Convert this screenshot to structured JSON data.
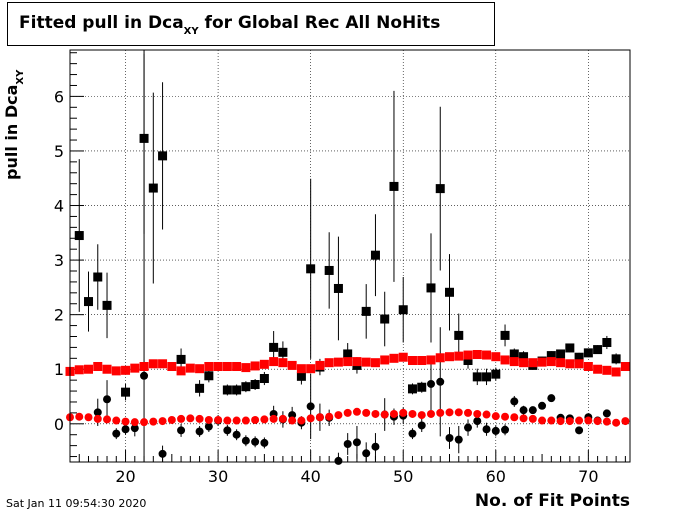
{
  "title": {
    "main": "Fitted pull in Dca",
    "sub": "XY",
    "rest": " for Global Rec All NoHits"
  },
  "ylabel": {
    "main": "pull in Dca",
    "sub": "XY"
  },
  "xlabel": "No. of Fit Points",
  "timestamp": "Sat Jan 11 09:54:30 2020",
  "chart_data": {
    "type": "scatter",
    "xlim": [
      14,
      74.5
    ],
    "ylim": [
      -0.7,
      6.85
    ],
    "xticks": [
      20,
      30,
      40,
      50,
      60,
      70
    ],
    "yticks": [
      0,
      1,
      2,
      3,
      4,
      5,
      6
    ],
    "grid": true,
    "series": [
      {
        "color": "#000000",
        "marker": "square",
        "points": [
          [
            15,
            3.45,
            1.4
          ],
          [
            16,
            2.24,
            0.55
          ],
          [
            17,
            2.69,
            0.6
          ],
          [
            18,
            2.17,
            0.6
          ],
          [
            20,
            0.58,
            0.15
          ],
          [
            22,
            5.23,
            1.75
          ],
          [
            23,
            4.32,
            1.75
          ],
          [
            24,
            4.91,
            1.35
          ],
          [
            26,
            1.18,
            0.2
          ],
          [
            28,
            0.65,
            0.15
          ],
          [
            29,
            0.88,
            0.12
          ],
          [
            31,
            0.62,
            0.1
          ],
          [
            32,
            0.62,
            0.1
          ],
          [
            33,
            0.68,
            0.1
          ],
          [
            34,
            0.72,
            0.1
          ],
          [
            35,
            0.83,
            0.12
          ],
          [
            36,
            1.4,
            0.3
          ],
          [
            37,
            1.31,
            0.2
          ],
          [
            39,
            0.87,
            0.15
          ],
          [
            40,
            2.84,
            1.65
          ],
          [
            41,
            1.04,
            0.15
          ],
          [
            42,
            2.81,
            0.7
          ],
          [
            43,
            2.48,
            0.95
          ],
          [
            44,
            1.28,
            0.2
          ],
          [
            45,
            1.07,
            0.15
          ],
          [
            46,
            2.06,
            0.5
          ],
          [
            47,
            3.09,
            0.75
          ],
          [
            48,
            1.92,
            0.5
          ],
          [
            49,
            4.35,
            1.75
          ],
          [
            50,
            2.09,
            0.6
          ],
          [
            51,
            0.64,
            0.1
          ],
          [
            52,
            0.67,
            0.1
          ],
          [
            53,
            2.49,
            1.0
          ],
          [
            54,
            4.31,
            1.5
          ],
          [
            55,
            2.41,
            0.7
          ],
          [
            56,
            1.62,
            0.4
          ],
          [
            57,
            1.16,
            0.15
          ],
          [
            58,
            0.86,
            0.15
          ],
          [
            59,
            0.86,
            0.15
          ],
          [
            60,
            0.91,
            0.12
          ],
          [
            61,
            1.62,
            0.2
          ],
          [
            62,
            1.28,
            0.1
          ],
          [
            63,
            1.23,
            0.1
          ],
          [
            64,
            1.07,
            0.08
          ],
          [
            65,
            1.15,
            0.08
          ],
          [
            66,
            1.25,
            0.08
          ],
          [
            67,
            1.28,
            0.08
          ],
          [
            68,
            1.39,
            0.08
          ],
          [
            69,
            1.22,
            0.08
          ],
          [
            70,
            1.3,
            0.08
          ],
          [
            71,
            1.36,
            0.08
          ],
          [
            72,
            1.49,
            0.12
          ],
          [
            73,
            1.19,
            0.1
          ]
        ]
      },
      {
        "color": "#000000",
        "marker": "circle",
        "points": [
          [
            17,
            0.21,
            0.25
          ],
          [
            18,
            0.45,
            0.35
          ],
          [
            19,
            -0.18,
            0.1
          ],
          [
            20,
            -0.1,
            0.1
          ],
          [
            21,
            -0.08,
            0.15
          ],
          [
            22,
            0.88,
            5.9
          ],
          [
            24,
            -0.55,
            0.15
          ],
          [
            26,
            -0.12,
            0.12
          ],
          [
            28,
            -0.14,
            0.1
          ],
          [
            29,
            -0.05,
            0.1
          ],
          [
            30,
            0.06,
            0.1
          ],
          [
            31,
            -0.12,
            0.1
          ],
          [
            32,
            -0.2,
            0.1
          ],
          [
            33,
            -0.31,
            0.1
          ],
          [
            34,
            -0.33,
            0.1
          ],
          [
            35,
            -0.35,
            0.1
          ],
          [
            36,
            0.18,
            0.15
          ],
          [
            37,
            0.08,
            0.15
          ],
          [
            38,
            0.16,
            0.15
          ],
          [
            39,
            0.02,
            0.12
          ],
          [
            40,
            0.32,
            0.6
          ],
          [
            41,
            0.12,
            0.25
          ],
          [
            42,
            0.11,
            0.15
          ],
          [
            43,
            -0.68,
            0.15
          ],
          [
            44,
            -0.37,
            0.2
          ],
          [
            45,
            -0.34,
            0.3
          ],
          [
            46,
            -0.54,
            0.2
          ],
          [
            47,
            -0.42,
            0.25
          ],
          [
            48,
            0.17,
            0.3
          ],
          [
            49,
            0.13,
            0.15
          ],
          [
            50,
            0.15,
            0.15
          ],
          [
            51,
            -0.18,
            0.1
          ],
          [
            52,
            -0.03,
            0.12
          ],
          [
            53,
            0.73,
            0.5
          ],
          [
            54,
            0.77,
            1.0
          ],
          [
            55,
            -0.26,
            0.2
          ],
          [
            56,
            -0.29,
            0.25
          ],
          [
            57,
            -0.07,
            0.15
          ],
          [
            58,
            0.05,
            0.12
          ],
          [
            59,
            -0.1,
            0.12
          ],
          [
            60,
            -0.13,
            0.1
          ],
          [
            61,
            -0.11,
            0.1
          ],
          [
            62,
            0.41,
            0.1
          ],
          [
            63,
            0.25,
            0.08
          ],
          [
            64,
            0.25,
            0.06
          ],
          [
            65,
            0.33,
            0.06
          ],
          [
            66,
            0.47,
            0.06
          ],
          [
            67,
            0.11,
            0.06
          ],
          [
            68,
            0.1,
            0.06
          ],
          [
            69,
            -0.12,
            0.06
          ],
          [
            70,
            0.12,
            0.06
          ],
          [
            71,
            0.06,
            0.06
          ],
          [
            72,
            0.19,
            0.06
          ]
        ]
      },
      {
        "color": "#ff0000",
        "marker": "square",
        "points": [
          [
            14,
            0.96
          ],
          [
            15,
            0.99
          ],
          [
            16,
            1.0
          ],
          [
            17,
            1.05
          ],
          [
            18,
            1.0
          ],
          [
            19,
            0.97
          ],
          [
            20,
            0.98
          ],
          [
            21,
            1.02
          ],
          [
            22,
            1.05
          ],
          [
            23,
            1.1
          ],
          [
            24,
            1.1
          ],
          [
            25,
            1.05
          ],
          [
            26,
            0.97
          ],
          [
            27,
            1.02
          ],
          [
            28,
            1.01
          ],
          [
            29,
            1.05
          ],
          [
            30,
            1.05
          ],
          [
            31,
            1.05
          ],
          [
            32,
            1.05
          ],
          [
            33,
            1.03
          ],
          [
            34,
            1.06
          ],
          [
            35,
            1.09
          ],
          [
            36,
            1.14
          ],
          [
            37,
            1.12
          ],
          [
            38,
            1.07
          ],
          [
            39,
            1.01
          ],
          [
            40,
            1.01
          ],
          [
            41,
            1.07
          ],
          [
            42,
            1.12
          ],
          [
            43,
            1.13
          ],
          [
            44,
            1.14
          ],
          [
            45,
            1.14
          ],
          [
            46,
            1.13
          ],
          [
            47,
            1.12
          ],
          [
            48,
            1.17
          ],
          [
            49,
            1.2
          ],
          [
            50,
            1.22
          ],
          [
            51,
            1.16
          ],
          [
            52,
            1.16
          ],
          [
            53,
            1.17
          ],
          [
            54,
            1.21
          ],
          [
            55,
            1.23
          ],
          [
            56,
            1.24
          ],
          [
            57,
            1.26
          ],
          [
            58,
            1.27
          ],
          [
            59,
            1.26
          ],
          [
            60,
            1.23
          ],
          [
            61,
            1.17
          ],
          [
            62,
            1.14
          ],
          [
            63,
            1.12
          ],
          [
            64,
            1.12
          ],
          [
            65,
            1.13
          ],
          [
            66,
            1.14
          ],
          [
            67,
            1.12
          ],
          [
            68,
            1.1
          ],
          [
            69,
            1.1
          ],
          [
            70,
            1.05
          ],
          [
            71,
            1.0
          ],
          [
            72,
            0.98
          ],
          [
            73,
            0.95
          ],
          [
            74,
            1.05
          ]
        ]
      },
      {
        "color": "#ff0000",
        "marker": "circle",
        "points": [
          [
            14,
            0.12
          ],
          [
            15,
            0.13
          ],
          [
            16,
            0.12
          ],
          [
            17,
            0.09
          ],
          [
            18,
            0.08
          ],
          [
            19,
            0.06
          ],
          [
            20,
            0.04
          ],
          [
            21,
            0.03
          ],
          [
            22,
            0.03
          ],
          [
            23,
            0.04
          ],
          [
            24,
            0.05
          ],
          [
            25,
            0.07
          ],
          [
            26,
            0.09
          ],
          [
            27,
            0.1
          ],
          [
            28,
            0.09
          ],
          [
            29,
            0.07
          ],
          [
            30,
            0.07
          ],
          [
            31,
            0.06
          ],
          [
            32,
            0.06
          ],
          [
            33,
            0.06
          ],
          [
            34,
            0.07
          ],
          [
            35,
            0.08
          ],
          [
            36,
            0.09
          ],
          [
            37,
            0.09
          ],
          [
            38,
            0.06
          ],
          [
            39,
            0.06
          ],
          [
            40,
            0.1
          ],
          [
            41,
            0.12
          ],
          [
            42,
            0.13
          ],
          [
            43,
            0.16
          ],
          [
            44,
            0.2
          ],
          [
            45,
            0.22
          ],
          [
            46,
            0.2
          ],
          [
            47,
            0.18
          ],
          [
            48,
            0.17
          ],
          [
            49,
            0.18
          ],
          [
            50,
            0.2
          ],
          [
            51,
            0.18
          ],
          [
            52,
            0.16
          ],
          [
            53,
            0.18
          ],
          [
            54,
            0.2
          ],
          [
            55,
            0.21
          ],
          [
            56,
            0.21
          ],
          [
            57,
            0.2
          ],
          [
            58,
            0.18
          ],
          [
            59,
            0.17
          ],
          [
            60,
            0.14
          ],
          [
            61,
            0.13
          ],
          [
            62,
            0.12
          ],
          [
            63,
            0.1
          ],
          [
            64,
            0.09
          ],
          [
            65,
            0.06
          ],
          [
            66,
            0.06
          ],
          [
            67,
            0.05
          ],
          [
            68,
            0.05
          ],
          [
            69,
            0.06
          ],
          [
            70,
            0.06
          ],
          [
            71,
            0.05
          ],
          [
            72,
            0.04
          ],
          [
            73,
            0.02
          ],
          [
            74,
            0.05
          ]
        ]
      }
    ]
  }
}
